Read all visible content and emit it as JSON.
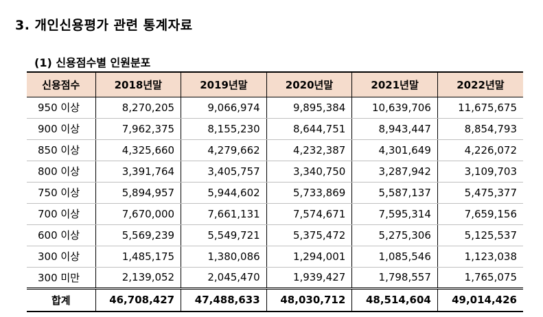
{
  "section_title": "3.  개인신용평가 관련 통계자료",
  "subsection_title": "(1) 신용점수별 인원분포",
  "table": {
    "headers": [
      "신용점수",
      "2018년말",
      "2019년말",
      "2020년말",
      "2021년말",
      "2022년말"
    ],
    "rows": [
      {
        "label": "950 이상",
        "values": [
          "8,270,205",
          "9,066,974",
          "9,895,384",
          "10,639,706",
          "11,675,675"
        ]
      },
      {
        "label": "900 이상",
        "values": [
          "7,962,375",
          "8,155,230",
          "8,644,751",
          "8,943,447",
          "8,854,793"
        ]
      },
      {
        "label": "850 이상",
        "values": [
          "4,325,660",
          "4,279,662",
          "4,232,387",
          "4,301,649",
          "4,226,072"
        ]
      },
      {
        "label": "800 이상",
        "values": [
          "3,391,764",
          "3,405,757",
          "3,340,750",
          "3,287,942",
          "3,109,703"
        ]
      },
      {
        "label": "750 이상",
        "values": [
          "5,894,957",
          "5,944,602",
          "5,733,869",
          "5,587,137",
          "5,475,377"
        ]
      },
      {
        "label": "700 이상",
        "values": [
          "7,670,000",
          "7,661,131",
          "7,574,671",
          "7,595,314",
          "7,659,156"
        ]
      },
      {
        "label": "600 이상",
        "values": [
          "5,569,239",
          "5,549,721",
          "5,375,472",
          "5,275,306",
          "5,125,537"
        ]
      },
      {
        "label": "300 이상",
        "values": [
          "1,485,175",
          "1,380,086",
          "1,294,001",
          "1,085,546",
          "1,123,038"
        ]
      },
      {
        "label": "300 미만",
        "values": [
          "2,139,052",
          "2,045,470",
          "1,939,427",
          "1,798,557",
          "1,765,075"
        ]
      }
    ],
    "total": {
      "label": "합계",
      "values": [
        "46,708,427",
        "47,488,633",
        "48,030,712",
        "48,514,604",
        "49,014,426"
      ]
    }
  },
  "colors": {
    "header_fill": "#f5dccc",
    "rule": "#000000",
    "inner_rule": "#bfbfbf"
  }
}
